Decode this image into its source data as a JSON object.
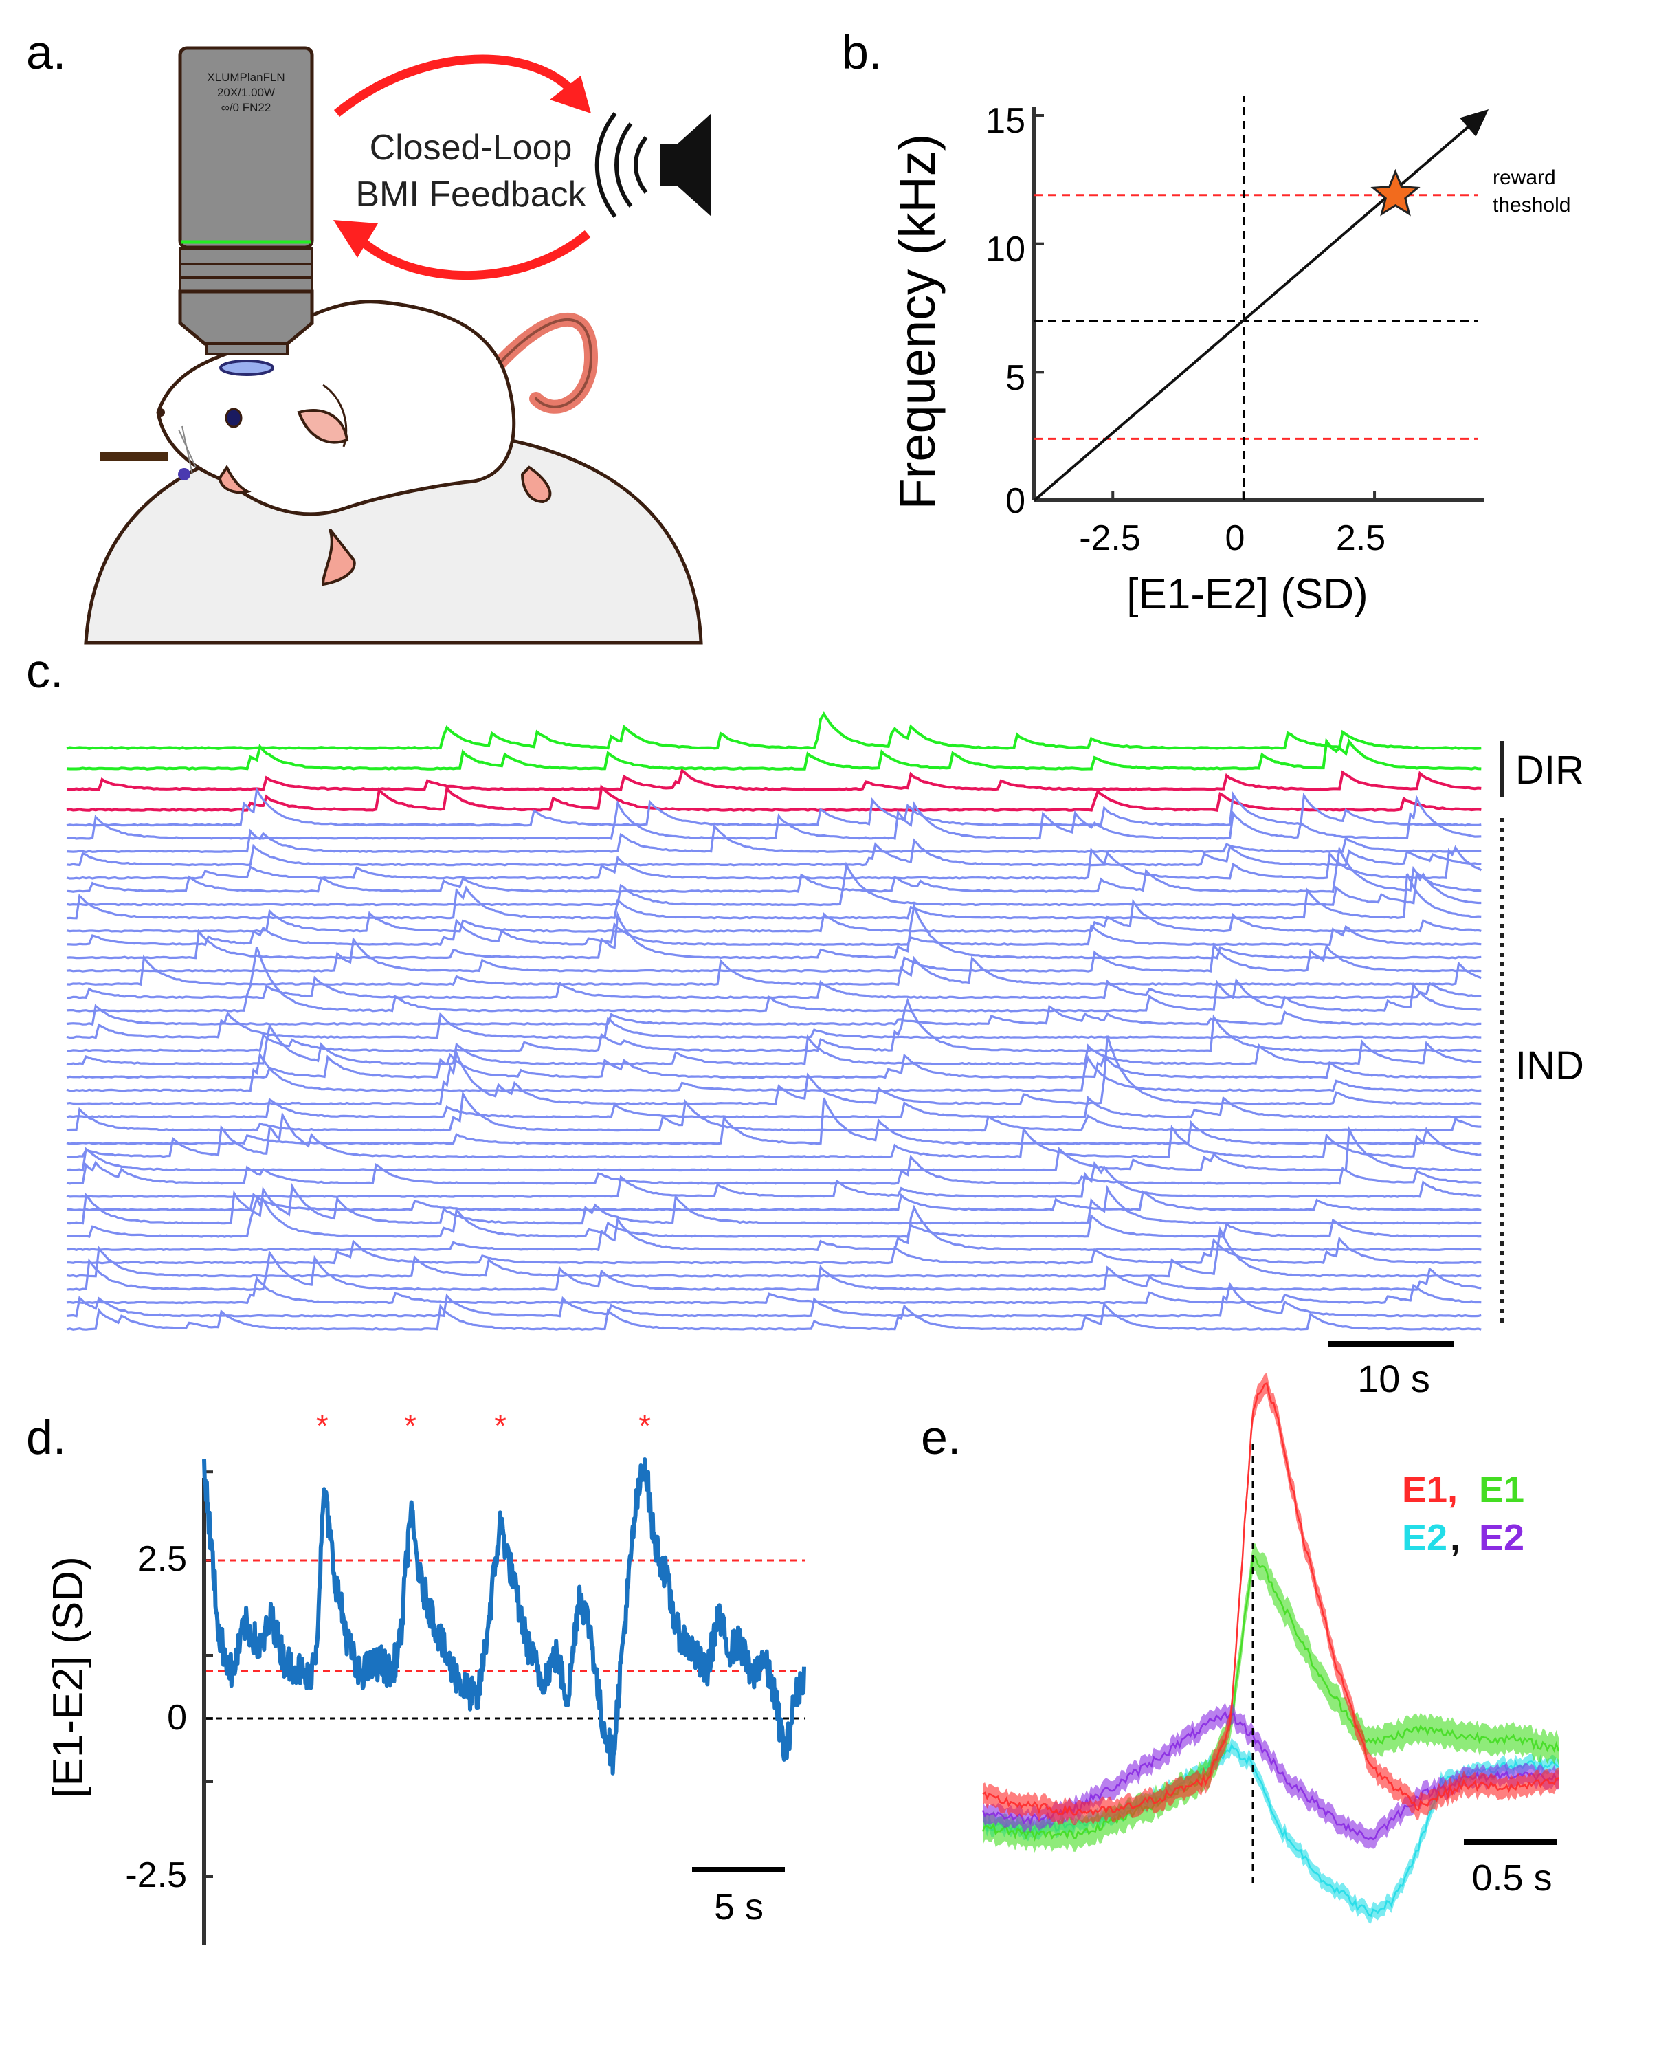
{
  "colors": {
    "e1": "#ff1a3c",
    "e2_ens": "#28e8f0",
    "dir_green": "#22ee22",
    "dir_red": "#e8145a",
    "ind_blue": "#7b8cf2",
    "d_trace": "#1a72c0",
    "e_red": "#ff2a2a",
    "e_green": "#44dd22",
    "e_cyan": "#22dde8",
    "e_purple": "#8a2be2",
    "dashed_red": "#ff2a2a",
    "star": "#f26b1d"
  },
  "panel_a": {
    "label": "a.",
    "objective_text": [
      "XLUMPlanFLN",
      "20X/1.00W",
      "∞/0 FN22"
    ],
    "loop_text": [
      "Closed-Loop",
      "BMI Feedback"
    ],
    "icons": [
      "microscope-objective-icon",
      "speaker-icon",
      "mouse-icon",
      "treadmill-ball-icon"
    ]
  },
  "panel_b": {
    "label": "b.",
    "ylabel": "Frequency (kHz)",
    "xlabel": "[E1-E2] (SD)",
    "yticks": [
      "0",
      "5",
      "10",
      "15"
    ],
    "xticks": [
      "-2.5",
      "0",
      "2.5"
    ],
    "annotation": [
      "reward",
      "theshold"
    ]
  },
  "panel_c": {
    "label": "c.",
    "dir_label": "DIR",
    "ind_label": "IND",
    "scalebar": "10 s"
  },
  "panel_d": {
    "label": "d.",
    "ylabel": "[E1-E2] (SD)",
    "yticks": [
      "2.5",
      "0",
      "-2.5"
    ],
    "scalebar": "5 s",
    "star_marker": "*"
  },
  "panel_e": {
    "label": "e.",
    "legend_row1": [
      "E1,",
      "E1"
    ],
    "legend_row2": [
      "E2",
      ", ",
      "E2"
    ],
    "scalebar": "0.5 s"
  },
  "chart_data": [
    {
      "type": "line",
      "panel": "b",
      "xlabel": "[E1-E2] (SD)",
      "ylabel": "Frequency (kHz)",
      "xlim": [
        -4,
        4.6
      ],
      "ylim": [
        0,
        15
      ],
      "xticks": [
        -2.5,
        0,
        2.5
      ],
      "yticks": [
        0,
        5,
        10,
        15
      ],
      "series": [
        {
          "x": [
            -4,
            4.6
          ],
          "y": [
            0,
            15.1
          ]
        }
      ],
      "reference_lines": {
        "red_dashed_y": [
          2.4,
          11.9
        ],
        "black_dashed_y": [
          7.0
        ],
        "black_dashed_x": [
          0
        ]
      },
      "star_point": {
        "x": 2.9,
        "y": 11.9
      },
      "annotation": "reward theshold"
    },
    {
      "type": "line",
      "panel": "d",
      "ylabel": "[E1-E2] (SD)",
      "ylim": [
        -4,
        4.1
      ],
      "yticks": [
        -2.5,
        0,
        2.5
      ],
      "reference_lines": {
        "red_dashed_y": [
          2.5,
          0.75
        ],
        "black_dashed_y": [
          0
        ]
      },
      "star_times_s": [
        6.3,
        11.0,
        15.8,
        23.5
      ],
      "series": [
        {
          "x": [
            0,
            0.8,
            1.5,
            2.2,
            3.0,
            3.6,
            4.3,
            5.0,
            5.6,
            6.0,
            6.4,
            7.0,
            7.6,
            8.2,
            8.8,
            9.4,
            10.0,
            10.5,
            11.0,
            11.5,
            12.2,
            13.0,
            13.8,
            14.6,
            15.2,
            15.8,
            16.4,
            17.2,
            18.0,
            18.8,
            19.4,
            20.0,
            20.6,
            21.2,
            21.8,
            22.4,
            23.0,
            23.5,
            24.0,
            24.6,
            25.2,
            26.0,
            26.8,
            27.4,
            28.0,
            28.6,
            29.2,
            29.8,
            30.4,
            31.0,
            31.5,
            32.0
          ],
          "y": [
            4.0,
            1.3,
            0.7,
            1.5,
            1.1,
            1.6,
            0.9,
            0.8,
            0.6,
            1.2,
            3.6,
            2.2,
            1.3,
            0.7,
            0.8,
            0.9,
            0.7,
            1.3,
            3.3,
            2.2,
            1.6,
            0.9,
            0.5,
            0.3,
            1.6,
            3.1,
            2.3,
            1.2,
            0.6,
            1.0,
            0.3,
            2.0,
            1.4,
            0.0,
            -0.6,
            1.4,
            3.3,
            4.1,
            2.8,
            2.3,
            1.4,
            1.1,
            0.7,
            1.6,
            1.1,
            1.2,
            0.6,
            1.0,
            0.4,
            -0.6,
            0.3,
            0.7
          ]
        }
      ]
    },
    {
      "type": "line",
      "panel": "e",
      "event_time_s": 0,
      "series": [
        {
          "name": "E1",
          "x": [
            -1.2,
            -1.0,
            -0.8,
            -0.6,
            -0.4,
            -0.2,
            -0.1,
            0.0,
            0.05,
            0.1,
            0.2,
            0.35,
            0.5,
            0.7,
            0.9,
            1.1,
            1.3
          ],
          "y": [
            0.3,
            0.24,
            0.2,
            0.21,
            0.3,
            0.42,
            0.78,
            2.85,
            3.05,
            2.85,
            2.1,
            1.2,
            0.5,
            0.24,
            0.38,
            0.36,
            0.4
          ]
        },
        {
          "name": "E1",
          "x": [
            -1.2,
            -1.0,
            -0.8,
            -0.6,
            -0.4,
            -0.2,
            -0.1,
            0.0,
            0.05,
            0.15,
            0.3,
            0.5,
            0.7,
            0.9,
            1.1,
            1.3
          ],
          "y": [
            0.1,
            0.05,
            0.05,
            0.15,
            0.28,
            0.45,
            0.75,
            1.9,
            1.8,
            1.5,
            1.05,
            0.65,
            0.75,
            0.7,
            0.68,
            0.62
          ]
        },
        {
          "name": "E2",
          "x": [
            -1.2,
            -1.0,
            -0.8,
            -0.6,
            -0.4,
            -0.2,
            -0.1,
            0.0,
            0.1,
            0.3,
            0.5,
            0.6,
            0.7,
            0.8,
            0.95,
            1.1,
            1.3
          ],
          "y": [
            0.12,
            0.08,
            0.12,
            0.18,
            0.32,
            0.5,
            0.62,
            0.52,
            0.12,
            -0.25,
            -0.48,
            -0.38,
            -0.05,
            0.4,
            0.48,
            0.5,
            0.52
          ]
        },
        {
          "name": "E2",
          "x": [
            -1.2,
            -1.0,
            -0.8,
            -0.6,
            -0.4,
            -0.2,
            -0.1,
            0.0,
            0.15,
            0.35,
            0.5,
            0.7,
            0.9,
            1.1,
            1.3
          ],
          "y": [
            0.2,
            0.15,
            0.22,
            0.38,
            0.58,
            0.78,
            0.85,
            0.7,
            0.4,
            0.15,
            0.02,
            0.3,
            0.42,
            0.45,
            0.42
          ]
        }
      ]
    }
  ]
}
